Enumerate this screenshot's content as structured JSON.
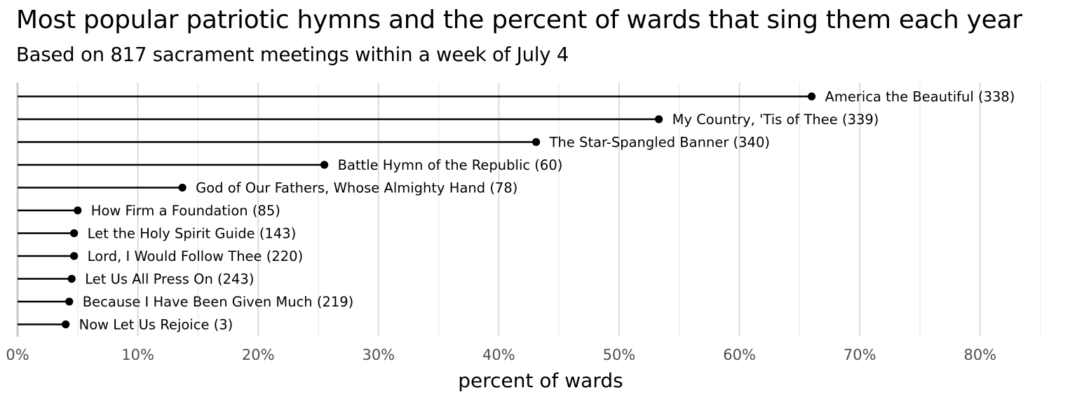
{
  "title": "Most popular patriotic hymns and the percent of wards that sing them each year",
  "subtitle": "Based on 817 sacrament meetings within a week of July 4",
  "chart_data": {
    "type": "lollipop",
    "title": "Most popular patriotic hymns and the percent of wards that sing them each year",
    "subtitle": "Based on 817 sacrament meetings within a week of July 4",
    "xlabel": "percent of wards",
    "ylabel": "",
    "xlim": [
      0,
      85
    ],
    "xticks": [
      0,
      10,
      20,
      30,
      40,
      50,
      60,
      70,
      80
    ],
    "xtick_labels": [
      "0%",
      "10%",
      "20%",
      "30%",
      "40%",
      "50%",
      "60%",
      "70%",
      "80%"
    ],
    "grid": "vertical",
    "categories": [
      "America the Beautiful (338)",
      "My Country, 'Tis of Thee (339)",
      "The Star-Spangled Banner (340)",
      "Battle Hymn of the Republic (60)",
      "God of Our Fathers, Whose Almighty Hand (78)",
      "How Firm a Foundation (85)",
      "Let the Holy Spirit Guide (143)",
      "Lord, I Would Follow Thee (220)",
      "Let Us All Press On (243)",
      "Because I Have Been Given Much (219)",
      "Now Let Us Rejoice (3)"
    ],
    "values": [
      66.0,
      53.3,
      43.1,
      25.5,
      13.7,
      5.0,
      4.7,
      4.7,
      4.5,
      4.3,
      4.0
    ]
  }
}
